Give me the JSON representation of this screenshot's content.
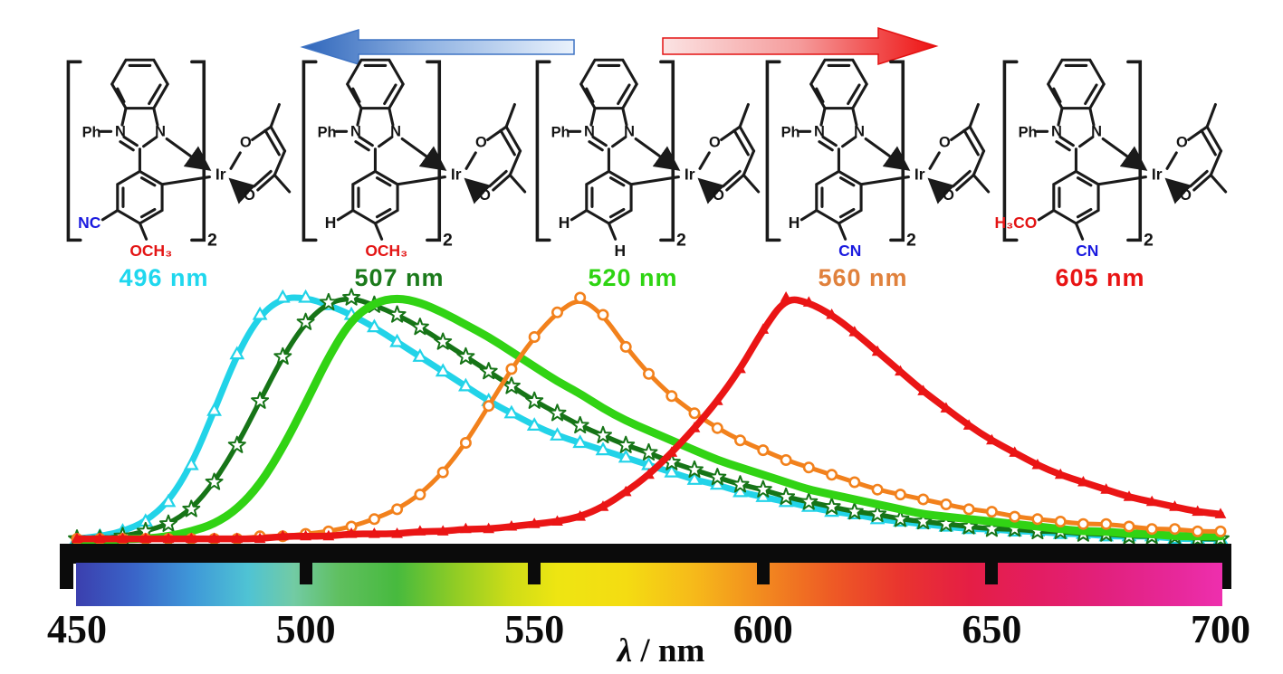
{
  "arrows": {
    "blue_left_arrow": {
      "direction": "left",
      "color": "#2f66bb",
      "meaning": "blue shift"
    },
    "red_right_arrow": {
      "direction": "right",
      "color": "#ee1212",
      "meaning": "red shift"
    }
  },
  "structure_atoms": {
    "ph": "Ph",
    "n_left": "N",
    "n_right": "N",
    "ir": "Ir",
    "o_top": "O",
    "o_bottom": "O",
    "multiplier": "2"
  },
  "complexes": [
    {
      "side": "NC",
      "side_color": "#1a1adf",
      "bottom": "OCH₃",
      "bottom_color": "#e31414",
      "peak": "496 nm",
      "peak_color": "#1fd7ee"
    },
    {
      "side": "H",
      "side_color": "#141414",
      "bottom": "OCH₃",
      "bottom_color": "#e31414",
      "peak": "507 nm",
      "peak_color": "#1b7a1b"
    },
    {
      "side": "H",
      "side_color": "#141414",
      "bottom": "H",
      "bottom_color": "#141414",
      "peak": "520 nm",
      "peak_color": "#2ed412"
    },
    {
      "side": "H",
      "side_color": "#141414",
      "bottom": "CN",
      "bottom_color": "#1a1adf",
      "peak": "560 nm",
      "peak_color": "#e0813c"
    },
    {
      "side": "H₃CO",
      "side_color": "#e31414",
      "bottom": "CN",
      "bottom_color": "#1a1adf",
      "peak": "605 nm",
      "peak_color": "#e81414"
    }
  ],
  "chart_data": {
    "type": "line",
    "title": "",
    "xlabel": "λ / nm",
    "xlabel_lambda": "λ",
    "xlabel_sep": " / ",
    "xlabel_unit": "nm",
    "ylabel": "",
    "xlim": [
      450,
      700
    ],
    "ylim": [
      0,
      1.05
    ],
    "grid": false,
    "legend_position": "none",
    "x_start": 450,
    "x_step": 5,
    "x_ticks": [
      450,
      500,
      550,
      600,
      650,
      700
    ],
    "series": [
      {
        "name": "496 nm complex",
        "peak_nm": 496,
        "color": "#22d3e8",
        "marker": "open-triangle",
        "line_width": 7,
        "values": [
          0.02,
          0.03,
          0.05,
          0.09,
          0.17,
          0.32,
          0.54,
          0.77,
          0.93,
          1.0,
          1.0,
          0.97,
          0.93,
          0.88,
          0.82,
          0.76,
          0.7,
          0.64,
          0.58,
          0.53,
          0.48,
          0.44,
          0.41,
          0.38,
          0.35,
          0.32,
          0.29,
          0.26,
          0.24,
          0.21,
          0.19,
          0.17,
          0.15,
          0.13,
          0.12,
          0.1,
          0.09,
          0.08,
          0.07,
          0.06,
          0.06,
          0.05,
          0.05,
          0.04,
          0.04,
          0.03,
          0.03,
          0.03,
          0.02,
          0.02,
          0.02
        ]
      },
      {
        "name": "507 nm complex",
        "peak_nm": 507,
        "color": "#167417",
        "marker": "open-star",
        "line_width": 5.5,
        "values": [
          0.02,
          0.02,
          0.03,
          0.05,
          0.08,
          0.14,
          0.25,
          0.4,
          0.58,
          0.76,
          0.9,
          0.98,
          1.0,
          0.97,
          0.93,
          0.88,
          0.82,
          0.76,
          0.7,
          0.64,
          0.58,
          0.53,
          0.48,
          0.44,
          0.4,
          0.37,
          0.33,
          0.3,
          0.27,
          0.24,
          0.22,
          0.19,
          0.17,
          0.15,
          0.13,
          0.12,
          0.1,
          0.09,
          0.08,
          0.07,
          0.06,
          0.06,
          0.05,
          0.05,
          0.04,
          0.04,
          0.03,
          0.03,
          0.03,
          0.02,
          0.02
        ]
      },
      {
        "name": "520 nm complex",
        "peak_nm": 520,
        "color": "#31d314",
        "marker": "none",
        "line_width": 9,
        "values": [
          0.01,
          0.01,
          0.02,
          0.02,
          0.03,
          0.05,
          0.08,
          0.14,
          0.24,
          0.39,
          0.57,
          0.76,
          0.91,
          0.98,
          1.0,
          0.98,
          0.94,
          0.89,
          0.84,
          0.78,
          0.72,
          0.66,
          0.61,
          0.55,
          0.5,
          0.46,
          0.42,
          0.38,
          0.34,
          0.31,
          0.28,
          0.25,
          0.22,
          0.2,
          0.18,
          0.16,
          0.14,
          0.12,
          0.11,
          0.1,
          0.09,
          0.08,
          0.07,
          0.06,
          0.05,
          0.05,
          0.04,
          0.04,
          0.03,
          0.03,
          0.03
        ]
      },
      {
        "name": "560 nm complex",
        "peak_nm": 560,
        "color": "#f2811c",
        "marker": "open-circle",
        "line_width": 5,
        "values": [
          0.02,
          0.02,
          0.02,
          0.02,
          0.02,
          0.02,
          0.02,
          0.02,
          0.03,
          0.03,
          0.04,
          0.05,
          0.07,
          0.1,
          0.14,
          0.2,
          0.29,
          0.41,
          0.56,
          0.71,
          0.84,
          0.94,
          1.0,
          0.93,
          0.8,
          0.69,
          0.6,
          0.53,
          0.47,
          0.42,
          0.38,
          0.34,
          0.31,
          0.28,
          0.25,
          0.22,
          0.2,
          0.18,
          0.16,
          0.14,
          0.13,
          0.11,
          0.1,
          0.09,
          0.08,
          0.08,
          0.07,
          0.06,
          0.06,
          0.05,
          0.05
        ]
      },
      {
        "name": "605 nm complex",
        "peak_nm": 605,
        "color": "#ea1515",
        "marker": "filled-triangle",
        "line_width": 7.5,
        "values": [
          0.02,
          0.02,
          0.02,
          0.02,
          0.02,
          0.02,
          0.02,
          0.02,
          0.02,
          0.03,
          0.03,
          0.03,
          0.04,
          0.04,
          0.04,
          0.05,
          0.05,
          0.06,
          0.06,
          0.07,
          0.08,
          0.09,
          0.11,
          0.15,
          0.21,
          0.28,
          0.37,
          0.47,
          0.58,
          0.71,
          0.87,
          1.0,
          0.98,
          0.93,
          0.86,
          0.78,
          0.7,
          0.62,
          0.55,
          0.48,
          0.42,
          0.37,
          0.32,
          0.28,
          0.25,
          0.22,
          0.19,
          0.17,
          0.15,
          0.13,
          0.12
        ]
      }
    ],
    "colorbar": {
      "range_nm": [
        450,
        700
      ],
      "stops": [
        {
          "at": 0.0,
          "c": "#3b3fae"
        },
        {
          "at": 0.05,
          "c": "#3a64c8"
        },
        {
          "at": 0.1,
          "c": "#3e97d8"
        },
        {
          "at": 0.15,
          "c": "#4fc3d4"
        },
        {
          "at": 0.19,
          "c": "#72cba4"
        },
        {
          "at": 0.23,
          "c": "#5fbf5f"
        },
        {
          "at": 0.28,
          "c": "#47ba3e"
        },
        {
          "at": 0.33,
          "c": "#8fcc25"
        },
        {
          "at": 0.38,
          "c": "#cfdd17"
        },
        {
          "at": 0.42,
          "c": "#eee512"
        },
        {
          "at": 0.48,
          "c": "#f4dc12"
        },
        {
          "at": 0.54,
          "c": "#f6b91a"
        },
        {
          "at": 0.6,
          "c": "#f2891f"
        },
        {
          "at": 0.66,
          "c": "#ee5a25"
        },
        {
          "at": 0.72,
          "c": "#e9342f"
        },
        {
          "at": 0.78,
          "c": "#e51e45"
        },
        {
          "at": 0.84,
          "c": "#e31d62"
        },
        {
          "at": 0.9,
          "c": "#e2217e"
        },
        {
          "at": 0.96,
          "c": "#e7289a"
        },
        {
          "at": 1.0,
          "c": "#ee2fae"
        }
      ]
    }
  }
}
